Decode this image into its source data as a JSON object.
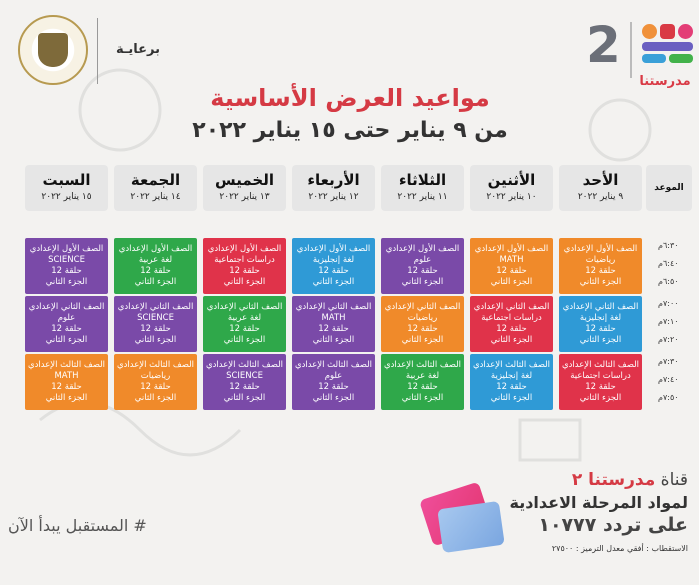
{
  "header": {
    "logo_number": "2",
    "logo_text": "مدرستنا",
    "logo_colors": [
      "#f0913a",
      "#d93a45",
      "#6a5fc1",
      "#3aa0d8",
      "#42b24a",
      "#e33d76"
    ],
    "sponsor": "برعايـة",
    "title": "مواعيد العرض الأساسية",
    "subtitle": "من ٩ يناير حتى ١٥ يناير ٢٠٢٢"
  },
  "table": {
    "time_header": "الموعد",
    "days": [
      {
        "name": "الأحد",
        "date": "٩ يناير ٢٠٢٢"
      },
      {
        "name": "الأثنين",
        "date": "١٠ يناير ٢٠٢٢"
      },
      {
        "name": "الثلاثاء",
        "date": "١١ يناير ٢٠٢٢"
      },
      {
        "name": "الأربعاء",
        "date": "١٢ يناير ٢٠٢٢"
      },
      {
        "name": "الخميس",
        "date": "١٣ يناير ٢٠٢٢"
      },
      {
        "name": "الجمعة",
        "date": "١٤ يناير ٢٠٢٢"
      },
      {
        "name": "السبت",
        "date": "١٥ يناير ٢٠٢٢"
      }
    ],
    "times": [
      "٦:٣٠م",
      "٦:٤٠م",
      "٦:٥٠م",
      "٧:٠٠م",
      "٧:١٠م",
      "٧:٢٠م",
      "٧:٣٠م",
      "٧:٤٠م",
      "٧:٥٠م"
    ],
    "rows": [
      [
        {
          "grade": "الصف الأول الإعدادي",
          "subject": "رياضيات",
          "lesson": "حلقة 12",
          "term": "الجزء الثاني",
          "color": "#f08a2a"
        },
        {
          "grade": "الصف الأول الإعدادي",
          "subject": "MATH",
          "lesson": "حلقة 12",
          "term": "الجزء الثاني",
          "color": "#f08a2a"
        },
        {
          "grade": "الصف الأول الإعدادي",
          "subject": "علوم",
          "lesson": "حلقة 12",
          "term": "الجزء الثاني",
          "color": "#7a4aa8"
        },
        {
          "grade": "الصف الأول الإعدادي",
          "subject": "لغة إنجليزية",
          "lesson": "حلقة 12",
          "term": "الجزء الثاني",
          "color": "#2f9ad6"
        },
        {
          "grade": "الصف الأول الإعدادي",
          "subject": "دراسات اجتماعية",
          "lesson": "حلقة 12",
          "term": "الجزء الثاني",
          "color": "#e0334a"
        },
        {
          "grade": "الصف الأول الإعدادي",
          "subject": "لغة عربية",
          "lesson": "حلقة 12",
          "term": "الجزء الثاني",
          "color": "#2fa84a"
        },
        {
          "grade": "الصف الأول الإعدادي",
          "subject": "SCIENCE",
          "lesson": "حلقة 12",
          "term": "الجزء الثاني",
          "color": "#7a4aa8"
        }
      ],
      [
        {
          "grade": "الصف الثاني الإعدادي",
          "subject": "لغة إنجليزية",
          "lesson": "حلقة 12",
          "term": "الجزء الثاني",
          "color": "#2f9ad6"
        },
        {
          "grade": "الصف الثاني الإعدادي",
          "subject": "دراسات اجتماعية",
          "lesson": "حلقة 12",
          "term": "الجزء الثاني",
          "color": "#e0334a"
        },
        {
          "grade": "الصف الثاني الإعدادي",
          "subject": "رياضيات",
          "lesson": "حلقة 12",
          "term": "الجزء الثاني",
          "color": "#f08a2a"
        },
        {
          "grade": "الصف الثاني الإعدادي",
          "subject": "MATH",
          "lesson": "حلقة 12",
          "term": "الجزء الثاني",
          "color": "#7a4aa8"
        },
        {
          "grade": "الصف الثاني الإعدادي",
          "subject": "لغة عربية",
          "lesson": "حلقة 12",
          "term": "الجزء الثاني",
          "color": "#2fa84a"
        },
        {
          "grade": "الصف الثاني الإعدادي",
          "subject": "SCIENCE",
          "lesson": "حلقة 12",
          "term": "الجزء الثاني",
          "color": "#7a4aa8"
        },
        {
          "grade": "الصف الثاني الإعدادي",
          "subject": "علوم",
          "lesson": "حلقة 12",
          "term": "الجزء الثاني",
          "color": "#7a4aa8"
        }
      ],
      [
        {
          "grade": "الصف الثالث الإعدادي",
          "subject": "دراسات اجتماعية",
          "lesson": "حلقة 12",
          "term": "الجزء الثاني",
          "color": "#e0334a"
        },
        {
          "grade": "الصف الثالث الإعدادي",
          "subject": "لغة إنجليزية",
          "lesson": "حلقة 12",
          "term": "الجزء الثاني",
          "color": "#2f9ad6"
        },
        {
          "grade": "الصف الثالث الإعدادي",
          "subject": "لغة عربية",
          "lesson": "حلقة 12",
          "term": "الجزء الثاني",
          "color": "#2fa84a"
        },
        {
          "grade": "الصف الثالث الإعدادي",
          "subject": "علوم",
          "lesson": "حلقة 12",
          "term": "الجزء الثاني",
          "color": "#7a4aa8"
        },
        {
          "grade": "الصف الثالث الإعدادي",
          "subject": "SCIENCE",
          "lesson": "حلقة 12",
          "term": "الجزء الثاني",
          "color": "#7a4aa8"
        },
        {
          "grade": "الصف الثالث الإعدادي",
          "subject": "رياضيات",
          "lesson": "حلقة 12",
          "term": "الجزء الثاني",
          "color": "#f08a2a"
        },
        {
          "grade": "الصف الثالث الإعدادي",
          "subject": "MATH",
          "lesson": "حلقة 12",
          "term": "الجزء الثاني",
          "color": "#f08a2a"
        }
      ]
    ]
  },
  "footer": {
    "channel_prefix": "قناة",
    "channel_name": "مدرستنا ٢",
    "line2": "لمواد المرحلة الاعدادية",
    "line3": "على تردد ١٠٧٧٧",
    "line4": "الاستقطاب : أفقي معدل الترميز : ٢٧٥٠٠",
    "slogan": "# المستقبل يبدأ الآن"
  }
}
